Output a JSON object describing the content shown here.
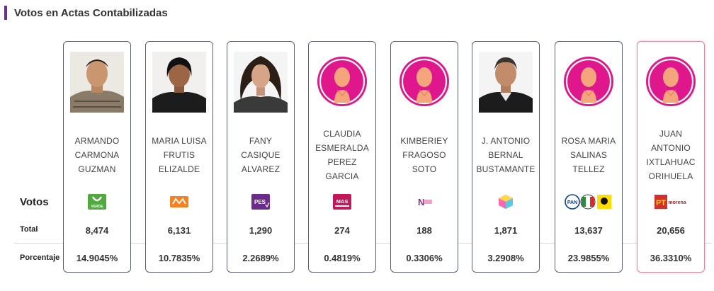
{
  "header": {
    "title": "Votos en Actas Contabilizadas"
  },
  "labels": {
    "votos": "Votos",
    "total": "Total",
    "porcentaje": "Porcentaje"
  },
  "colors": {
    "accent": "#6b2f8e",
    "card_border": "#5a5e72",
    "winner_border": "#d98a9f",
    "placeholder": "#e0168c"
  },
  "candidates": [
    {
      "name_lines": [
        "ARMANDO",
        "CARMONA",
        "GUZMAN"
      ],
      "party": "PVEM",
      "party_logo_text": "VERDE",
      "total": "8,474",
      "percentage": "14.9045%",
      "photo": "photo-icon"
    },
    {
      "name_lines": [
        "MARIA LUISA",
        "FRUTIS",
        "ELIZALDE"
      ],
      "party": "MC",
      "party_logo_text": "",
      "total": "6,131",
      "percentage": "10.7835%",
      "photo": "photo-icon"
    },
    {
      "name_lines": [
        "FANY",
        "CASIQUE",
        "ALVAREZ"
      ],
      "party": "PES",
      "party_logo_text": "PES",
      "total": "1,290",
      "percentage": "2.2689%",
      "photo": "photo-icon"
    },
    {
      "name_lines": [
        "CLAUDIA",
        "ESMERALDA",
        "PEREZ",
        "GARCIA"
      ],
      "party": "MAS",
      "party_logo_text": "MAS",
      "total": "274",
      "percentage": "0.4819%",
      "photo": "placeholder-avatar-icon"
    },
    {
      "name_lines": [
        "KIMBERIEY",
        "FRAGOSO",
        "SOTO"
      ],
      "party": "NUEVA ALIANZA",
      "party_logo_text": "",
      "total": "188",
      "percentage": "0.3306%",
      "photo": "placeholder-avatar-icon"
    },
    {
      "name_lines": [
        "J. ANTONIO",
        "BERNAL",
        "BUSTAMANTE"
      ],
      "party": "FXM",
      "party_logo_text": "",
      "total": "1,871",
      "percentage": "3.2908%",
      "photo": "photo-icon"
    },
    {
      "name_lines": [
        "ROSA MARIA",
        "SALINAS",
        "TELLEZ"
      ],
      "party": "PAN-PRI-PRD",
      "party_logo_text": "PAN",
      "total": "13,637",
      "percentage": "23.9855%",
      "photo": "placeholder-avatar-icon"
    },
    {
      "name_lines": [
        "JUAN",
        "ANTONIO",
        "IXTLAHUAC",
        "ORIHUELA"
      ],
      "party": "PT-MORENA",
      "party_logo_text": "PT",
      "party_logo_text_2": "morena",
      "total": "20,656",
      "percentage": "36.3310%",
      "photo": "placeholder-avatar-icon"
    }
  ]
}
